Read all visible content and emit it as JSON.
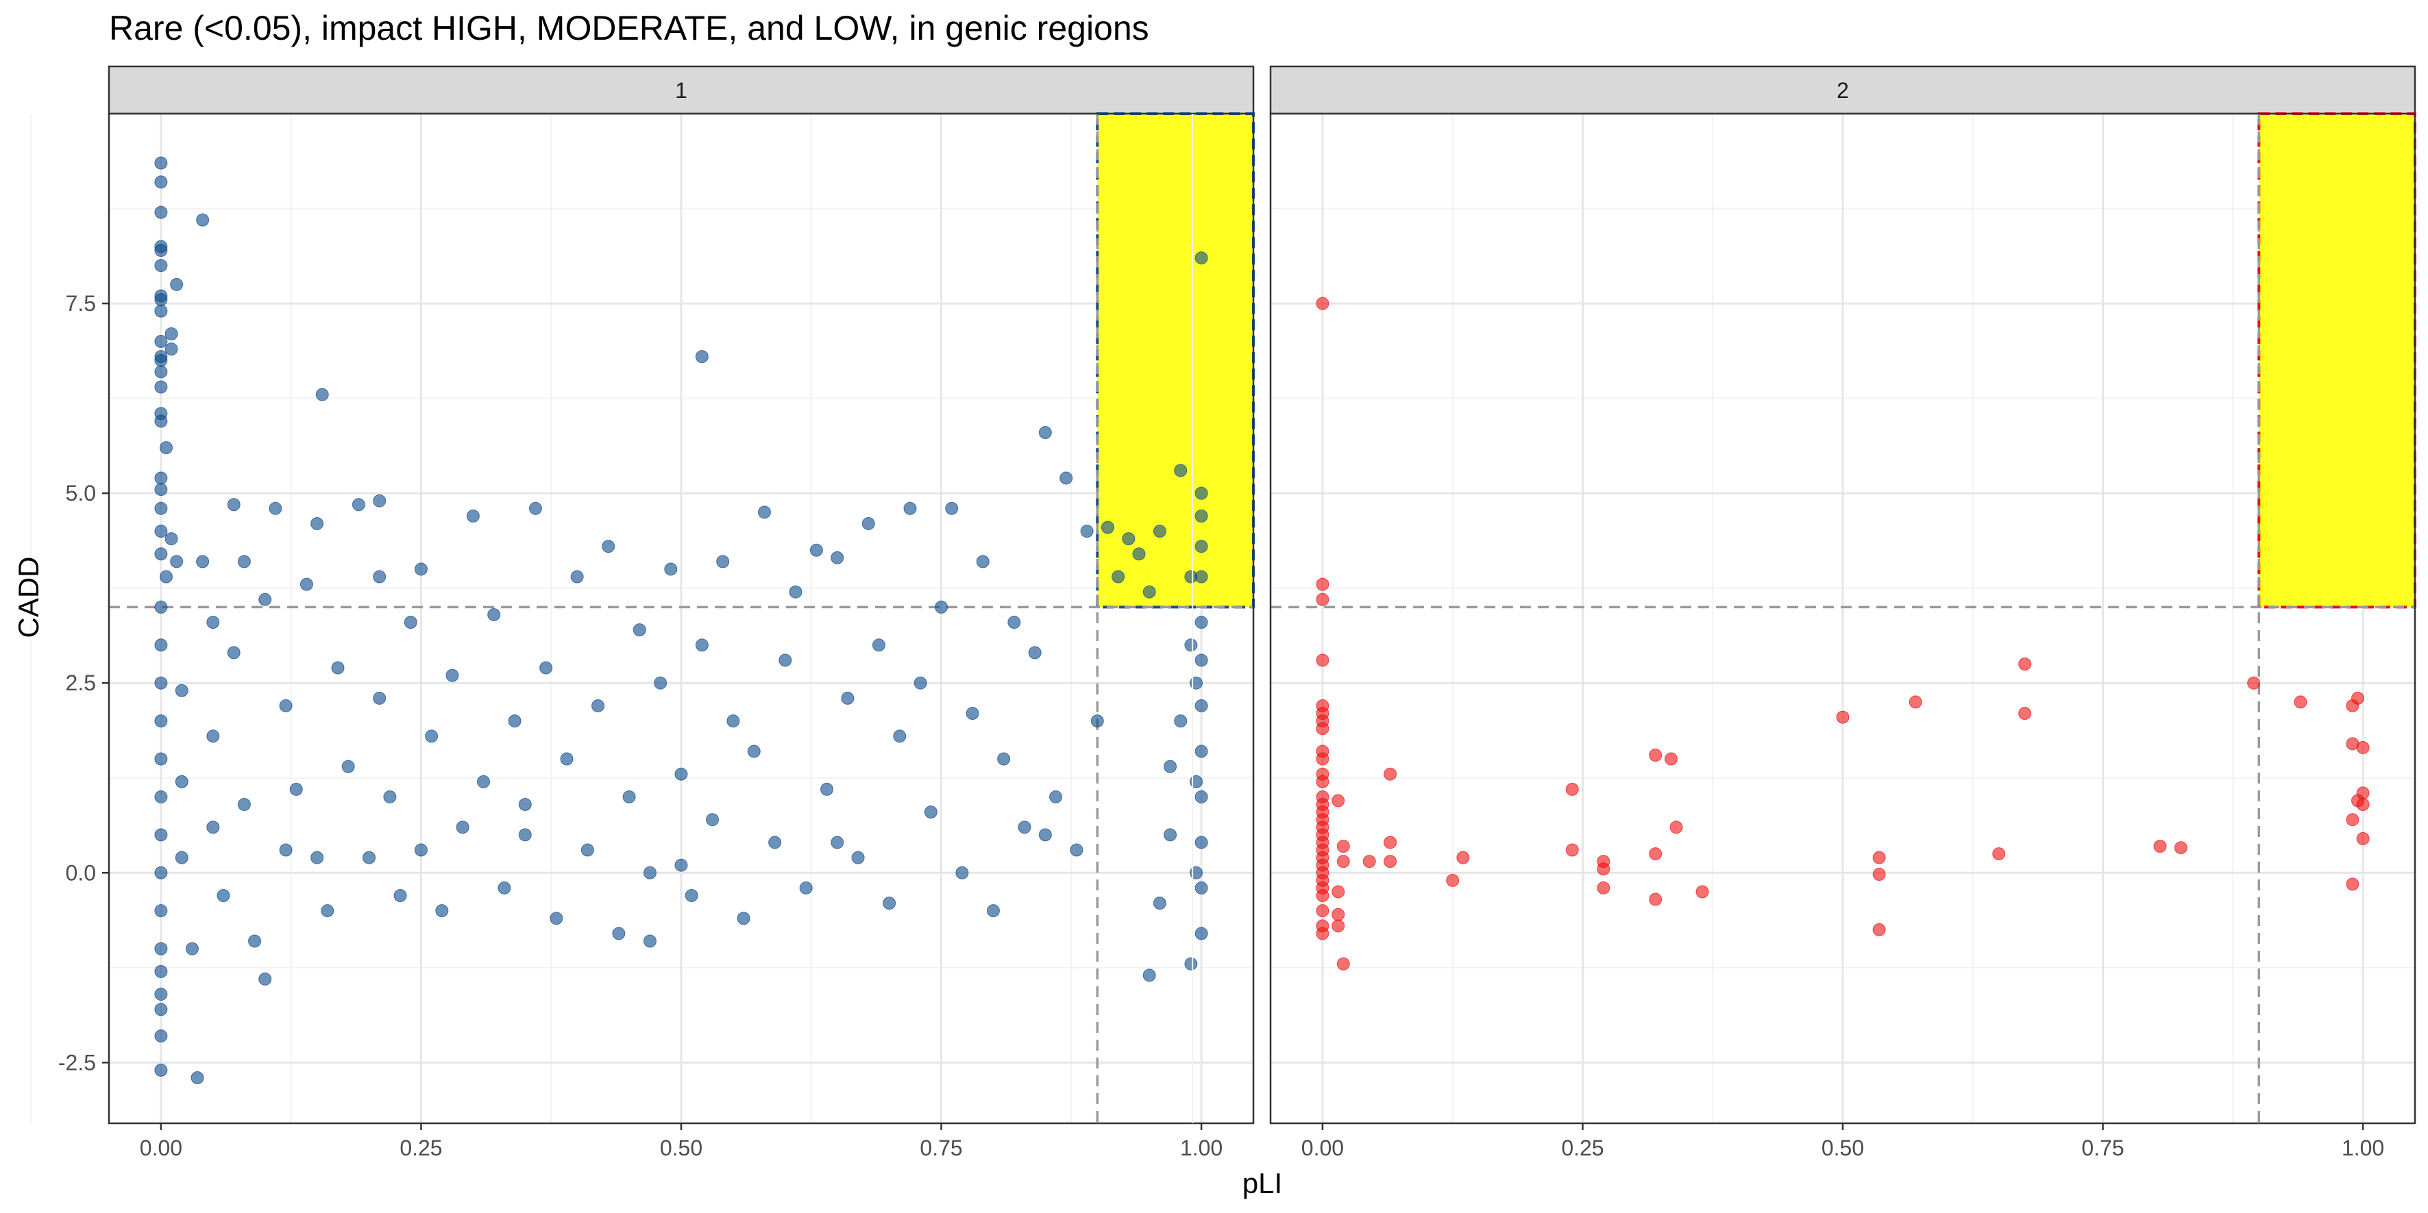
{
  "chart_data": {
    "type": "scatter",
    "title": "Rare (<0.05), impact HIGH, MODERATE, and LOW, in genic regions",
    "xlabel": "pLI",
    "ylabel": "CADD",
    "xlim": [
      -0.05,
      1.05
    ],
    "ylim": [
      -3.3,
      10.0
    ],
    "x_ticks": [
      0.0,
      0.25,
      0.5,
      0.75,
      1.0
    ],
    "x_tick_labels": [
      "0.00",
      "0.25",
      "0.50",
      "0.75",
      "1.00"
    ],
    "y_ticks": [
      -2.5,
      0.0,
      2.5,
      5.0,
      7.5
    ],
    "y_tick_labels": [
      "-2.5",
      "0.0",
      "2.5",
      "5.0",
      "7.5"
    ],
    "grid": true,
    "legend": "none",
    "thresholds": {
      "pLI": 0.9,
      "CADD": 3.5
    },
    "highlight_fill": "#ffff22",
    "panels": [
      {
        "strip_label": "1",
        "point_color": "#0b4a8b",
        "threshold_line_color": "#9a9a9a",
        "box_border_color": "#1a4f8a",
        "points_note": "dense cloud, representative sample",
        "points": [
          [
            0.0,
            9.35
          ],
          [
            0.0,
            9.1
          ],
          [
            0.0,
            8.7
          ],
          [
            0.0,
            8.25
          ],
          [
            0.0,
            8.2
          ],
          [
            0.0,
            8.0
          ],
          [
            0.0,
            7.55
          ],
          [
            0.0,
            7.6
          ],
          [
            0.0,
            7.4
          ],
          [
            0.0,
            7.0
          ],
          [
            0.0,
            6.8
          ],
          [
            0.0,
            6.75
          ],
          [
            0.0,
            6.6
          ],
          [
            0.0,
            6.4
          ],
          [
            0.0,
            6.05
          ],
          [
            0.0,
            5.95
          ],
          [
            0.005,
            5.6
          ],
          [
            0.0,
            5.2
          ],
          [
            0.0,
            5.05
          ],
          [
            0.0,
            4.8
          ],
          [
            0.0,
            4.5
          ],
          [
            0.0,
            4.2
          ],
          [
            0.005,
            3.9
          ],
          [
            0.0,
            3.5
          ],
          [
            0.0,
            3.0
          ],
          [
            0.0,
            2.5
          ],
          [
            0.0,
            2.0
          ],
          [
            0.0,
            1.5
          ],
          [
            0.0,
            1.0
          ],
          [
            0.0,
            0.5
          ],
          [
            0.0,
            0.0
          ],
          [
            0.0,
            -0.5
          ],
          [
            0.0,
            -1.0
          ],
          [
            0.0,
            -1.3
          ],
          [
            0.0,
            -1.6
          ],
          [
            0.0,
            -1.8
          ],
          [
            0.0,
            -2.15
          ],
          [
            0.0,
            -2.6
          ],
          [
            0.01,
            7.1
          ],
          [
            0.01,
            6.9
          ],
          [
            0.01,
            4.4
          ],
          [
            0.015,
            7.75
          ],
          [
            0.015,
            4.1
          ],
          [
            0.02,
            2.4
          ],
          [
            0.02,
            1.2
          ],
          [
            0.02,
            0.2
          ],
          [
            0.03,
            -1.0
          ],
          [
            0.035,
            -2.7
          ],
          [
            0.04,
            8.6
          ],
          [
            0.04,
            4.1
          ],
          [
            0.05,
            3.3
          ],
          [
            0.05,
            1.8
          ],
          [
            0.05,
            0.6
          ],
          [
            0.06,
            -0.3
          ],
          [
            0.07,
            4.85
          ],
          [
            0.07,
            2.9
          ],
          [
            0.08,
            4.1
          ],
          [
            0.08,
            0.9
          ],
          [
            0.09,
            -0.9
          ],
          [
            0.1,
            3.6
          ],
          [
            0.1,
            -1.4
          ],
          [
            0.11,
            4.8
          ],
          [
            0.12,
            2.2
          ],
          [
            0.12,
            0.3
          ],
          [
            0.13,
            1.1
          ],
          [
            0.14,
            3.8
          ],
          [
            0.15,
            4.6
          ],
          [
            0.155,
            6.3
          ],
          [
            0.16,
            -0.5
          ],
          [
            0.17,
            2.7
          ],
          [
            0.18,
            1.4
          ],
          [
            0.19,
            4.85
          ],
          [
            0.2,
            0.2
          ],
          [
            0.21,
            4.9
          ],
          [
            0.21,
            3.9
          ],
          [
            0.21,
            2.3
          ],
          [
            0.22,
            1.0
          ],
          [
            0.23,
            -0.3
          ],
          [
            0.24,
            3.3
          ],
          [
            0.25,
            4.0
          ],
          [
            0.26,
            1.8
          ],
          [
            0.27,
            -0.5
          ],
          [
            0.28,
            2.6
          ],
          [
            0.29,
            0.6
          ],
          [
            0.3,
            4.7
          ],
          [
            0.31,
            1.2
          ],
          [
            0.32,
            3.4
          ],
          [
            0.33,
            -0.2
          ],
          [
            0.34,
            2.0
          ],
          [
            0.35,
            0.9
          ],
          [
            0.36,
            4.8
          ],
          [
            0.37,
            2.7
          ],
          [
            0.38,
            -0.6
          ],
          [
            0.39,
            1.5
          ],
          [
            0.4,
            3.9
          ],
          [
            0.41,
            0.3
          ],
          [
            0.42,
            2.2
          ],
          [
            0.43,
            4.3
          ],
          [
            0.44,
            -0.8
          ],
          [
            0.45,
            1.0
          ],
          [
            0.46,
            3.2
          ],
          [
            0.47,
            0.0
          ],
          [
            0.47,
            -0.9
          ],
          [
            0.48,
            2.5
          ],
          [
            0.49,
            4.0
          ],
          [
            0.5,
            1.3
          ],
          [
            0.51,
            -0.3
          ],
          [
            0.52,
            6.8
          ],
          [
            0.52,
            3.0
          ],
          [
            0.53,
            0.7
          ],
          [
            0.54,
            4.1
          ],
          [
            0.55,
            2.0
          ],
          [
            0.56,
            -0.6
          ],
          [
            0.57,
            1.6
          ],
          [
            0.58,
            4.75
          ],
          [
            0.59,
            0.4
          ],
          [
            0.6,
            2.8
          ],
          [
            0.61,
            3.7
          ],
          [
            0.62,
            -0.2
          ],
          [
            0.63,
            4.25
          ],
          [
            0.64,
            1.1
          ],
          [
            0.65,
            4.15
          ],
          [
            0.66,
            2.3
          ],
          [
            0.67,
            0.2
          ],
          [
            0.68,
            4.6
          ],
          [
            0.69,
            3.0
          ],
          [
            0.7,
            -0.4
          ],
          [
            0.71,
            1.8
          ],
          [
            0.72,
            4.8
          ],
          [
            0.73,
            2.5
          ],
          [
            0.74,
            0.8
          ],
          [
            0.75,
            3.5
          ],
          [
            0.76,
            4.8
          ],
          [
            0.77,
            0.0
          ],
          [
            0.78,
            2.1
          ],
          [
            0.79,
            4.1
          ],
          [
            0.8,
            -0.5
          ],
          [
            0.81,
            1.5
          ],
          [
            0.82,
            3.3
          ],
          [
            0.83,
            0.6
          ],
          [
            0.84,
            2.9
          ],
          [
            0.85,
            5.8
          ],
          [
            0.86,
            1.0
          ],
          [
            0.87,
            5.2
          ],
          [
            0.88,
            0.3
          ],
          [
            0.89,
            4.5
          ],
          [
            0.9,
            2.0
          ],
          [
            0.91,
            4.55
          ],
          [
            0.92,
            3.9
          ],
          [
            0.93,
            4.4
          ],
          [
            0.94,
            4.2
          ],
          [
            0.95,
            3.7
          ],
          [
            0.96,
            4.5
          ],
          [
            0.97,
            0.5
          ],
          [
            0.98,
            5.3
          ],
          [
            0.99,
            3.9
          ],
          [
            1.0,
            8.1
          ],
          [
            1.0,
            5.0
          ],
          [
            1.0,
            4.7
          ],
          [
            1.0,
            4.3
          ],
          [
            1.0,
            3.9
          ],
          [
            1.0,
            3.3
          ],
          [
            1.0,
            2.8
          ],
          [
            1.0,
            2.2
          ],
          [
            1.0,
            1.6
          ],
          [
            1.0,
            1.0
          ],
          [
            1.0,
            0.4
          ],
          [
            1.0,
            -0.2
          ],
          [
            1.0,
            -0.8
          ],
          [
            0.99,
            -1.2
          ],
          [
            0.95,
            -1.35
          ],
          [
            0.995,
            2.5
          ],
          [
            0.995,
            1.2
          ],
          [
            0.995,
            0.0
          ],
          [
            0.99,
            3.0
          ],
          [
            0.98,
            2.0
          ],
          [
            0.97,
            1.4
          ],
          [
            0.96,
            -0.4
          ],
          [
            0.5,
            0.1
          ],
          [
            0.35,
            0.5
          ],
          [
            0.25,
            0.3
          ],
          [
            0.15,
            0.2
          ],
          [
            0.65,
            0.4
          ],
          [
            0.85,
            0.5
          ]
        ]
      },
      {
        "strip_label": "2",
        "point_color": "#ee1111",
        "threshold_line_color": "#9a9a9a",
        "box_border_color": "#ee1111",
        "points": [
          [
            0.0,
            7.5
          ],
          [
            0.0,
            3.8
          ],
          [
            0.0,
            3.6
          ],
          [
            0.0,
            2.8
          ],
          [
            0.0,
            2.2
          ],
          [
            0.0,
            2.1
          ],
          [
            0.0,
            2.0
          ],
          [
            0.0,
            1.9
          ],
          [
            0.0,
            1.6
          ],
          [
            0.0,
            1.5
          ],
          [
            0.0,
            1.3
          ],
          [
            0.0,
            1.2
          ],
          [
            0.0,
            1.0
          ],
          [
            0.0,
            0.9
          ],
          [
            0.0,
            0.8
          ],
          [
            0.0,
            0.7
          ],
          [
            0.0,
            0.6
          ],
          [
            0.0,
            0.5
          ],
          [
            0.0,
            0.4
          ],
          [
            0.0,
            0.3
          ],
          [
            0.0,
            0.2
          ],
          [
            0.0,
            0.1
          ],
          [
            0.0,
            0.0
          ],
          [
            0.0,
            -0.1
          ],
          [
            0.0,
            -0.2
          ],
          [
            0.0,
            -0.3
          ],
          [
            0.0,
            -0.5
          ],
          [
            0.0,
            -0.7
          ],
          [
            0.0,
            -0.8
          ],
          [
            0.015,
            0.95
          ],
          [
            0.015,
            -0.25
          ],
          [
            0.02,
            0.35
          ],
          [
            0.02,
            0.15
          ],
          [
            0.015,
            -0.55
          ],
          [
            0.015,
            -0.7
          ],
          [
            0.02,
            -1.2
          ],
          [
            0.045,
            0.15
          ],
          [
            0.065,
            1.3
          ],
          [
            0.065,
            0.4
          ],
          [
            0.065,
            0.15
          ],
          [
            0.125,
            -0.1
          ],
          [
            0.135,
            0.2
          ],
          [
            0.24,
            1.1
          ],
          [
            0.24,
            0.3
          ],
          [
            0.27,
            0.15
          ],
          [
            0.27,
            0.05
          ],
          [
            0.27,
            -0.2
          ],
          [
            0.32,
            1.55
          ],
          [
            0.32,
            0.25
          ],
          [
            0.32,
            -0.35
          ],
          [
            0.335,
            1.5
          ],
          [
            0.34,
            0.6
          ],
          [
            0.365,
            -0.25
          ],
          [
            0.5,
            2.05
          ],
          [
            0.535,
            0.2
          ],
          [
            0.535,
            -0.02
          ],
          [
            0.535,
            -0.75
          ],
          [
            0.57,
            2.25
          ],
          [
            0.65,
            0.25
          ],
          [
            0.675,
            2.75
          ],
          [
            0.675,
            2.1
          ],
          [
            0.805,
            0.35
          ],
          [
            0.825,
            0.33
          ],
          [
            0.895,
            2.5
          ],
          [
            0.94,
            2.25
          ],
          [
            0.995,
            2.3
          ],
          [
            0.99,
            2.2
          ],
          [
            0.99,
            1.7
          ],
          [
            1.0,
            1.65
          ],
          [
            1.0,
            1.05
          ],
          [
            0.995,
            0.95
          ],
          [
            1.0,
            0.9
          ],
          [
            0.99,
            0.7
          ],
          [
            1.0,
            0.45
          ],
          [
            0.99,
            -0.15
          ]
        ]
      }
    ]
  }
}
